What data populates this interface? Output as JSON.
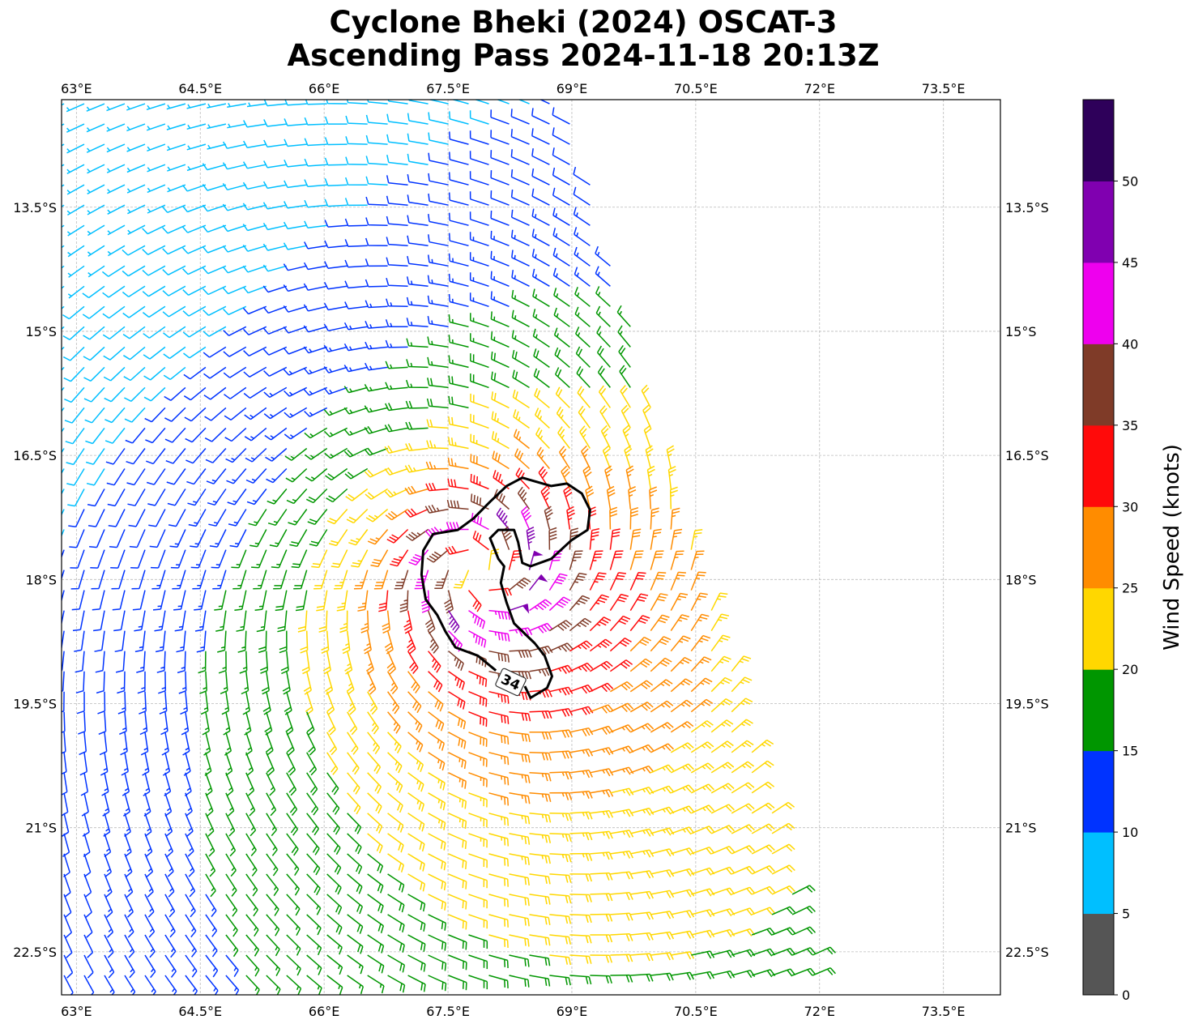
{
  "chart_data": {
    "type": "wind_barb_map",
    "title": [
      "Cyclone Bheki (2024) OSCAT-3",
      "Ascending Pass 2024-11-18 20:13Z"
    ],
    "lon_range": [
      62.82,
      74.19
    ],
    "lat_range": [
      12.2,
      23.02
    ],
    "lon_ticks": [
      63,
      64.5,
      66,
      67.5,
      69,
      70.5,
      72,
      73.5
    ],
    "lon_tick_labels": [
      "63°E",
      "64.5°E",
      "66°E",
      "67.5°E",
      "69°E",
      "70.5°E",
      "72°E",
      "73.5°E"
    ],
    "lat_ticks": [
      13.5,
      15,
      16.5,
      18,
      19.5,
      21,
      22.5
    ],
    "lat_tick_labels": [
      "13.5°S",
      "15°S",
      "16.5°S",
      "18°S",
      "19.5°S",
      "21°S",
      "22.5°S"
    ],
    "grid": true,
    "swath": {
      "west_lon": 62.85,
      "east_lon_at_north": 68.94,
      "east_lon_at_south": 72.07
    },
    "vortex": {
      "center_lon": 67.9,
      "center_lat": 17.9,
      "max_wind_kt": 47,
      "rmw_deg": 0.6,
      "asym_kt": 6,
      "inflow": 0.3
    },
    "contour": {
      "level": 34,
      "label": "34",
      "label_pos": [
        68.26,
        19.24
      ],
      "path": [
        [
          68.08,
          19.1
        ],
        [
          67.86,
          18.92
        ],
        [
          67.59,
          18.82
        ],
        [
          67.47,
          18.63
        ],
        [
          67.37,
          18.43
        ],
        [
          67.23,
          18.24
        ],
        [
          67.18,
          17.94
        ],
        [
          67.2,
          17.65
        ],
        [
          67.32,
          17.45
        ],
        [
          67.62,
          17.4
        ],
        [
          67.81,
          17.26
        ],
        [
          68.01,
          17.06
        ],
        [
          68.21,
          16.87
        ],
        [
          68.4,
          16.77
        ],
        [
          68.75,
          16.87
        ],
        [
          68.94,
          16.84
        ],
        [
          69.12,
          16.96
        ],
        [
          69.22,
          17.16
        ],
        [
          69.19,
          17.4
        ],
        [
          68.99,
          17.53
        ],
        [
          68.75,
          17.75
        ],
        [
          68.5,
          17.84
        ],
        [
          68.4,
          17.8
        ],
        [
          68.35,
          17.55
        ],
        [
          68.3,
          17.4
        ],
        [
          68.11,
          17.4
        ],
        [
          68.01,
          17.5
        ],
        [
          68.11,
          17.75
        ],
        [
          68.18,
          17.84
        ],
        [
          68.14,
          18.04
        ],
        [
          68.21,
          18.28
        ],
        [
          68.3,
          18.53
        ],
        [
          68.55,
          18.77
        ],
        [
          68.67,
          18.92
        ],
        [
          68.76,
          19.17
        ],
        [
          68.7,
          19.31
        ],
        [
          68.5,
          19.43
        ],
        [
          68.43,
          19.29
        ]
      ]
    },
    "colorbar": {
      "label": "Wind Speed (knots)",
      "levels": [
        0,
        5,
        10,
        15,
        20,
        25,
        30,
        35,
        40,
        45,
        50,
        55
      ],
      "tick_labels": [
        "0",
        "5",
        "10",
        "15",
        "20",
        "25",
        "30",
        "35",
        "40",
        "45",
        "50"
      ],
      "colors": [
        "#555555",
        "#00bfff",
        "#0033ff",
        "#009600",
        "#ffd700",
        "#ff8c00",
        "#ff0a0a",
        "#7f3b28",
        "#ee00ee",
        "#8000b0",
        "#2e005a"
      ]
    }
  }
}
